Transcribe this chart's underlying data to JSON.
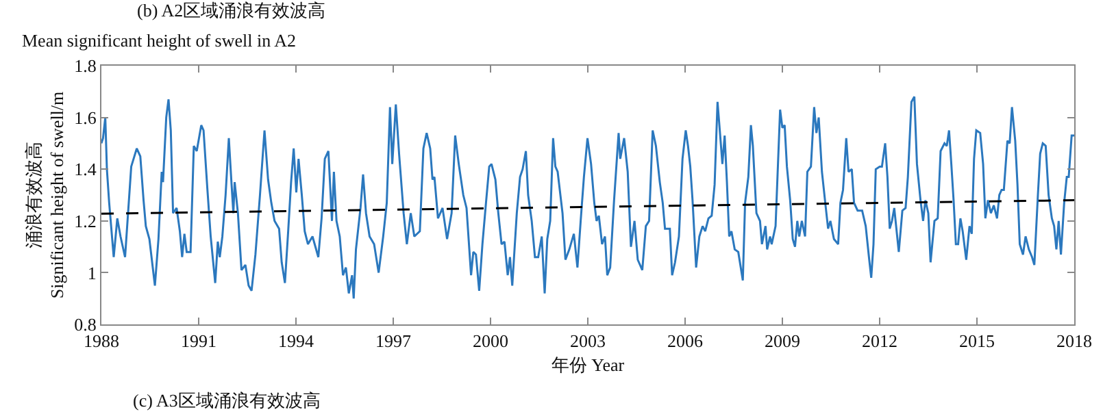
{
  "chart_data": {
    "type": "line",
    "title": "(b) A2区域涌浪有效波高",
    "subtitle": "Mean significant height of swell in A2",
    "xlabel": "年份 Year",
    "ylabel": "涌浪有效波高\nSignificant height of swell/m",
    "annotations": [
      "(c) A3区域涌浪有效波高"
    ],
    "xlim": [
      1988,
      2018
    ],
    "xticks": [
      1988,
      1991,
      1994,
      1997,
      2000,
      2003,
      2006,
      2009,
      2012,
      2015,
      2018
    ],
    "ylim": [
      0.8,
      1.8
    ],
    "yticks": [
      0.8,
      1,
      1.2,
      1.4,
      1.6,
      1.8
    ],
    "grid": false,
    "marker": "none",
    "series": [
      {
        "color": "#2b78be",
        "line_style": "solid",
        "x": [
          1988.0,
          1988.05,
          1988.12,
          1988.17,
          1988.24,
          1988.38,
          1988.49,
          1988.59,
          1988.73,
          1988.92,
          1989.09,
          1989.2,
          1989.3,
          1989.37,
          1989.48,
          1989.65,
          1989.76,
          1989.86,
          1989.9,
          1990.0,
          1990.07,
          1990.14,
          1990.21,
          1990.32,
          1990.42,
          1990.49,
          1990.56,
          1990.63,
          1990.75,
          1990.85,
          1990.94,
          1991.08,
          1991.15,
          1991.27,
          1991.37,
          1991.51,
          1991.59,
          1991.65,
          1991.73,
          1991.83,
          1991.93,
          1992.01,
          1992.07,
          1992.11,
          1992.21,
          1992.32,
          1992.44,
          1992.54,
          1992.63,
          1992.75,
          1992.89,
          1993.03,
          1993.14,
          1993.24,
          1993.34,
          1993.48,
          1993.56,
          1993.66,
          1993.76,
          1993.85,
          1993.93,
          1994.01,
          1994.08,
          1994.18,
          1994.27,
          1994.37,
          1994.51,
          1994.69,
          1994.79,
          1994.89,
          1995.0,
          1995.11,
          1995.17,
          1995.25,
          1995.35,
          1995.45,
          1995.54,
          1995.63,
          1995.73,
          1995.78,
          1995.85,
          1995.99,
          1996.07,
          1996.16,
          1996.27,
          1996.41,
          1996.55,
          1996.69,
          1996.8,
          1996.9,
          1996.97,
          1997.08,
          1997.18,
          1997.32,
          1997.42,
          1997.54,
          1997.65,
          1997.82,
          1997.93,
          1998.03,
          1998.14,
          1998.21,
          1998.27,
          1998.38,
          1998.52,
          1998.66,
          1998.8,
          1998.91,
          1999.02,
          1999.16,
          1999.26,
          1999.4,
          1999.47,
          1999.55,
          1999.65,
          1999.75,
          1999.86,
          1999.96,
          2000.03,
          2000.15,
          2000.24,
          2000.34,
          2000.43,
          2000.53,
          2000.6,
          2000.67,
          2000.81,
          2000.91,
          2000.99,
          2001.09,
          2001.16,
          2001.27,
          2001.37,
          2001.47,
          2001.58,
          2001.67,
          2001.75,
          2001.84,
          2001.93,
          2002.0,
          2002.07,
          2002.22,
          2002.31,
          2002.43,
          2002.57,
          2002.68,
          2002.78,
          2002.88,
          2002.99,
          2003.1,
          2003.2,
          2003.27,
          2003.34,
          2003.44,
          2003.53,
          2003.6,
          2003.69,
          2003.81,
          2003.95,
          2004.0,
          2004.12,
          2004.23,
          2004.33,
          2004.44,
          2004.54,
          2004.68,
          2004.79,
          2004.89,
          2005.0,
          2005.1,
          2005.22,
          2005.31,
          2005.38,
          2005.53,
          2005.6,
          2005.69,
          2005.81,
          2005.92,
          2006.02,
          2006.09,
          2006.16,
          2006.23,
          2006.34,
          2006.44,
          2006.54,
          2006.62,
          2006.72,
          2006.82,
          2006.91,
          2007.0,
          2007.07,
          2007.15,
          2007.22,
          2007.29,
          2007.36,
          2007.43,
          2007.53,
          2007.64,
          2007.78,
          2007.85,
          2007.95,
          2008.03,
          2008.09,
          2008.2,
          2008.31,
          2008.37,
          2008.48,
          2008.53,
          2008.62,
          2008.67,
          2008.79,
          2008.93,
          2009.0,
          2009.07,
          2009.14,
          2009.24,
          2009.32,
          2009.39,
          2009.46,
          2009.52,
          2009.6,
          2009.7,
          2009.77,
          2009.88,
          2009.98,
          2010.05,
          2010.12,
          2010.22,
          2010.34,
          2010.41,
          2010.48,
          2010.59,
          2010.72,
          2010.79,
          2010.87,
          2010.97,
          2011.04,
          2011.14,
          2011.21,
          2011.32,
          2011.46,
          2011.57,
          2011.67,
          2011.74,
          2011.81,
          2011.88,
          2012.0,
          2012.07,
          2012.17,
          2012.24,
          2012.31,
          2012.38,
          2012.45,
          2012.59,
          2012.7,
          2012.8,
          2012.87,
          2012.98,
          2013.07,
          2013.15,
          2013.26,
          2013.34,
          2013.41,
          2013.5,
          2013.57,
          2013.69,
          2013.79,
          2013.88,
          2014.0,
          2014.07,
          2014.14,
          2014.21,
          2014.28,
          2014.35,
          2014.42,
          2014.49,
          2014.56,
          2014.67,
          2014.77,
          2014.84,
          2014.91,
          2014.98,
          2015.1,
          2015.19,
          2015.26,
          2015.34,
          2015.43,
          2015.52,
          2015.62,
          2015.69,
          2015.76,
          2015.83,
          2015.94,
          2016.01,
          2016.08,
          2016.18,
          2016.25,
          2016.32,
          2016.42,
          2016.5,
          2016.6,
          2016.7,
          2016.77,
          2016.88,
          2016.95,
          2017.03,
          2017.12,
          2017.21,
          2017.31,
          2017.38,
          2017.45,
          2017.52,
          2017.59,
          2017.69,
          2017.77,
          2017.83,
          2017.92,
          2018.0
        ],
        "values": [
          1.5,
          1.52,
          1.6,
          1.4,
          1.27,
          1.06,
          1.21,
          1.14,
          1.06,
          1.41,
          1.48,
          1.45,
          1.28,
          1.18,
          1.13,
          0.95,
          1.13,
          1.39,
          1.35,
          1.6,
          1.67,
          1.55,
          1.23,
          1.25,
          1.16,
          1.06,
          1.15,
          1.08,
          1.08,
          1.49,
          1.47,
          1.57,
          1.55,
          1.32,
          1.14,
          0.96,
          1.12,
          1.06,
          1.14,
          1.3,
          1.52,
          1.35,
          1.23,
          1.35,
          1.23,
          1.01,
          1.03,
          0.95,
          0.93,
          1.07,
          1.3,
          1.55,
          1.36,
          1.27,
          1.2,
          1.17,
          1.04,
          0.96,
          1.16,
          1.35,
          1.48,
          1.31,
          1.44,
          1.3,
          1.16,
          1.11,
          1.14,
          1.06,
          1.21,
          1.44,
          1.47,
          1.2,
          1.39,
          1.2,
          1.14,
          0.99,
          1.02,
          0.92,
          0.99,
          0.9,
          1.09,
          1.25,
          1.38,
          1.23,
          1.14,
          1.11,
          1.0,
          1.14,
          1.27,
          1.64,
          1.42,
          1.65,
          1.46,
          1.23,
          1.11,
          1.23,
          1.14,
          1.16,
          1.48,
          1.54,
          1.48,
          1.36,
          1.37,
          1.21,
          1.25,
          1.13,
          1.23,
          1.53,
          1.42,
          1.3,
          1.25,
          0.99,
          1.08,
          1.07,
          0.93,
          1.11,
          1.27,
          1.41,
          1.42,
          1.36,
          1.23,
          1.11,
          1.12,
          0.99,
          1.06,
          0.95,
          1.23,
          1.37,
          1.4,
          1.47,
          1.3,
          1.2,
          1.06,
          1.06,
          1.14,
          0.92,
          1.13,
          1.2,
          1.52,
          1.41,
          1.39,
          1.23,
          1.05,
          1.09,
          1.15,
          1.02,
          1.2,
          1.37,
          1.52,
          1.42,
          1.27,
          1.2,
          1.22,
          1.11,
          1.14,
          0.99,
          1.02,
          1.28,
          1.54,
          1.44,
          1.52,
          1.39,
          1.1,
          1.2,
          1.05,
          1.01,
          1.18,
          1.2,
          1.55,
          1.49,
          1.35,
          1.27,
          1.17,
          1.17,
          0.99,
          1.04,
          1.14,
          1.44,
          1.55,
          1.49,
          1.41,
          1.28,
          1.02,
          1.14,
          1.18,
          1.16,
          1.21,
          1.22,
          1.34,
          1.66,
          1.55,
          1.42,
          1.53,
          1.35,
          1.14,
          1.16,
          1.09,
          1.08,
          0.97,
          1.27,
          1.37,
          1.57,
          1.49,
          1.23,
          1.2,
          1.11,
          1.18,
          1.09,
          1.14,
          1.11,
          1.18,
          1.63,
          1.56,
          1.57,
          1.41,
          1.28,
          1.13,
          1.1,
          1.2,
          1.14,
          1.2,
          1.14,
          1.39,
          1.41,
          1.64,
          1.54,
          1.6,
          1.39,
          1.25,
          1.17,
          1.2,
          1.13,
          1.11,
          1.27,
          1.32,
          1.52,
          1.39,
          1.4,
          1.27,
          1.24,
          1.24,
          1.18,
          1.06,
          0.98,
          1.11,
          1.4,
          1.41,
          1.41,
          1.5,
          1.37,
          1.17,
          1.2,
          1.25,
          1.08,
          1.24,
          1.25,
          1.37,
          1.66,
          1.68,
          1.42,
          1.28,
          1.2,
          1.28,
          1.23,
          1.04,
          1.2,
          1.21,
          1.47,
          1.5,
          1.49,
          1.55,
          1.42,
          1.28,
          1.11,
          1.11,
          1.21,
          1.16,
          1.05,
          1.18,
          1.15,
          1.44,
          1.55,
          1.54,
          1.42,
          1.21,
          1.28,
          1.23,
          1.26,
          1.21,
          1.3,
          1.32,
          1.32,
          1.51,
          1.5,
          1.64,
          1.51,
          1.34,
          1.11,
          1.07,
          1.14,
          1.09,
          1.06,
          1.03,
          1.3,
          1.46,
          1.5,
          1.49,
          1.3,
          1.21,
          1.18,
          1.09,
          1.2,
          1.07,
          1.27,
          1.37,
          1.37,
          1.53,
          1.53
        ]
      },
      {
        "type": "line",
        "color": "#000000",
        "line_style": "dashed",
        "x": [
          1988,
          2018
        ],
        "values": [
          1.228,
          1.28
        ]
      }
    ]
  }
}
